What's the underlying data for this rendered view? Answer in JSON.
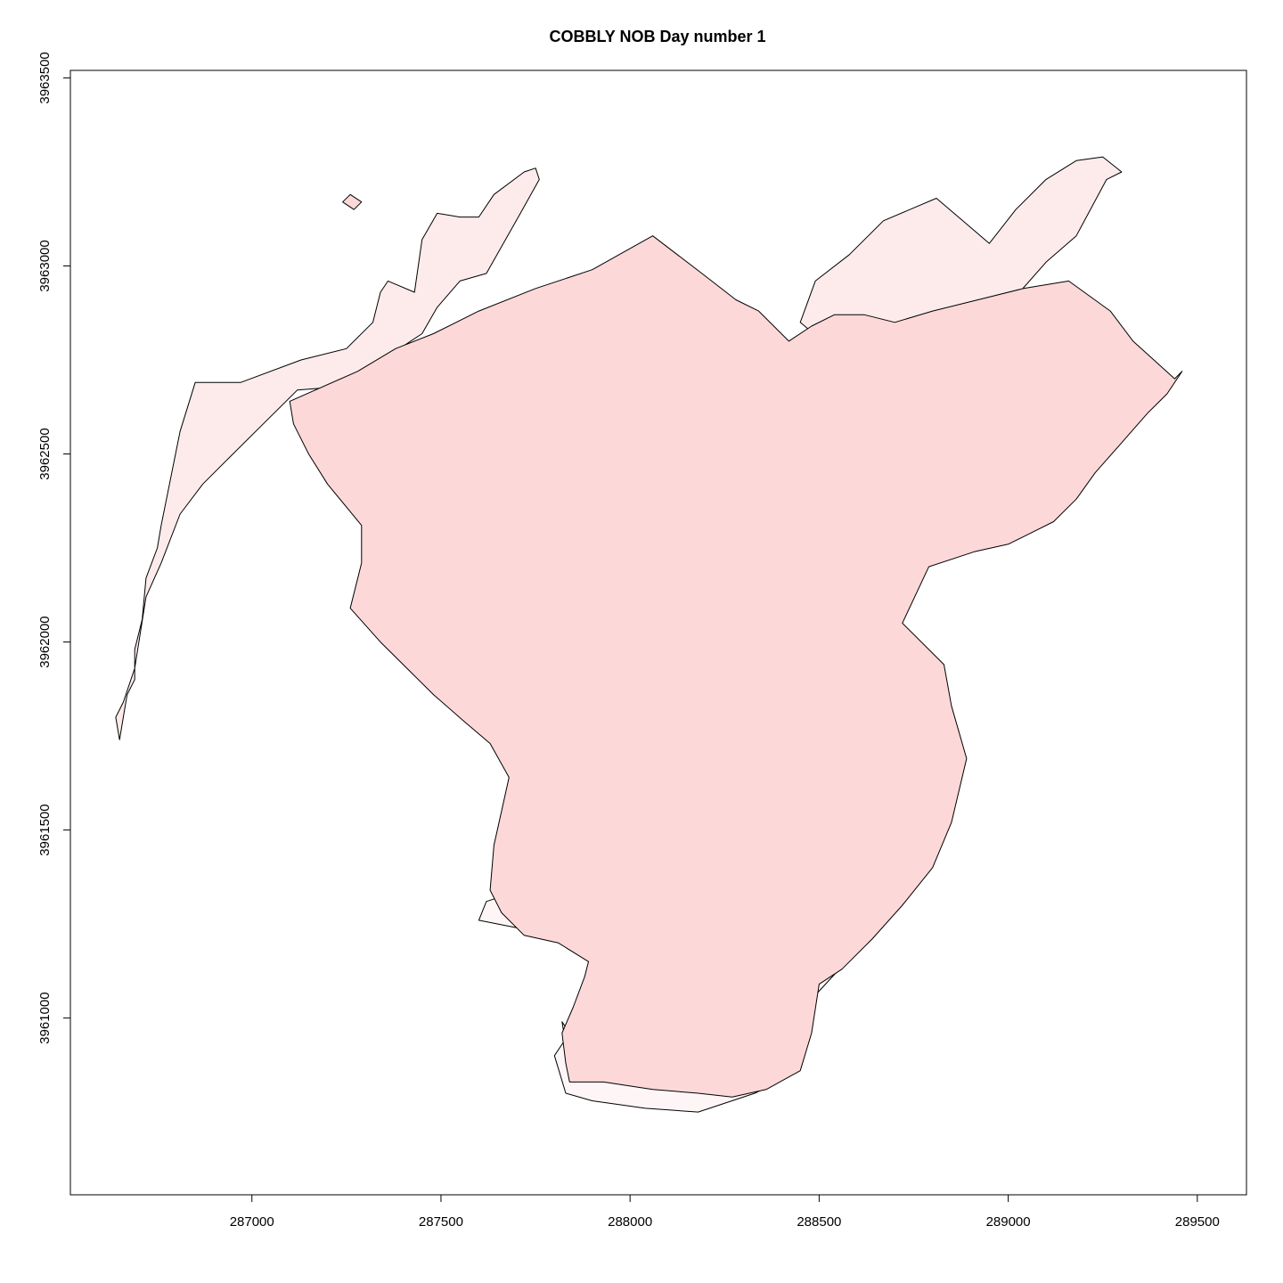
{
  "title": "COBBLY NOB   Day number 1",
  "axes": {
    "x": {
      "ticks": [
        287000,
        287500,
        288000,
        288500,
        289000,
        289500
      ],
      "tick_labels": [
        "287000",
        "287500",
        "288000",
        "288500",
        "289000",
        "289500"
      ],
      "range": [
        286520,
        289630
      ]
    },
    "y": {
      "ticks": [
        3961000,
        3961500,
        3962000,
        3962500,
        3963000,
        3963500
      ],
      "tick_labels": [
        "3961000",
        "3961500",
        "3962000",
        "3962500",
        "3963000",
        "3963500"
      ],
      "range": [
        3960530,
        3963520
      ]
    }
  },
  "map_data": {
    "layers": [
      {
        "name": "outer_fires",
        "fill": "#fdebeb",
        "polygons": [
          [
            [
              286650,
              3961740
            ],
            [
              286640,
              3961800
            ],
            [
              286660,
              3961840
            ],
            [
              286690,
              3961930
            ],
            [
              286720,
              3962120
            ],
            [
              286760,
              3962210
            ],
            [
              286810,
              3962340
            ],
            [
              286870,
              3962420
            ],
            [
              286950,
              3962500
            ],
            [
              287120,
              3962670
            ],
            [
              287250,
              3962680
            ],
            [
              287340,
              3962750
            ],
            [
              287390,
              3962780
            ],
            [
              287450,
              3962820
            ],
            [
              287490,
              3962890
            ],
            [
              287550,
              3962960
            ],
            [
              287620,
              3962980
            ],
            [
              287710,
              3963140
            ],
            [
              287760,
              3963230
            ],
            [
              287750,
              3963260
            ],
            [
              287720,
              3963250
            ],
            [
              287640,
              3963190
            ],
            [
              287600,
              3963130
            ],
            [
              287550,
              3963130
            ],
            [
              287490,
              3963140
            ],
            [
              287450,
              3963070
            ],
            [
              287430,
              3962930
            ],
            [
              287360,
              3962960
            ],
            [
              287340,
              3962930
            ],
            [
              287320,
              3962850
            ],
            [
              287250,
              3962780
            ],
            [
              287130,
              3962750
            ],
            [
              286970,
              3962690
            ],
            [
              286850,
              3962690
            ],
            [
              286810,
              3962560
            ],
            [
              286760,
              3962310
            ],
            [
              286750,
              3962250
            ],
            [
              286720,
              3962170
            ],
            [
              286710,
              3962060
            ],
            [
              286690,
              3961980
            ],
            [
              286690,
              3961900
            ],
            [
              286670,
              3961860
            ],
            [
              286660,
              3961800
            ]
          ],
          [
            [
              288860,
              3962610
            ],
            [
              288940,
              3962720
            ],
            [
              288980,
              3962820
            ],
            [
              289030,
              3962930
            ],
            [
              289100,
              3963010
            ],
            [
              289180,
              3963080
            ],
            [
              289260,
              3963230
            ],
            [
              289300,
              3963250
            ],
            [
              289250,
              3963290
            ],
            [
              289180,
              3963280
            ],
            [
              289100,
              3963230
            ],
            [
              289020,
              3963150
            ],
            [
              288950,
              3963060
            ],
            [
              288810,
              3963180
            ],
            [
              288670,
              3963120
            ],
            [
              288580,
              3963030
            ],
            [
              288490,
              3962960
            ],
            [
              288450,
              3962850
            ],
            [
              288520,
              3962790
            ],
            [
              288600,
              3962770
            ],
            [
              288690,
              3962740
            ],
            [
              288780,
              3962680
            ]
          ]
        ]
      },
      {
        "name": "mid_fires",
        "fill": "#fef6f6",
        "polygons": [
          [
            [
              287830,
              3960800
            ],
            [
              287900,
              3960780
            ],
            [
              288040,
              3960760
            ],
            [
              288180,
              3960750
            ],
            [
              288330,
              3960800
            ],
            [
              288430,
              3960850
            ],
            [
              288460,
              3960940
            ],
            [
              288480,
              3961050
            ],
            [
              288590,
              3961170
            ],
            [
              288520,
              3961160
            ],
            [
              288450,
              3961140
            ],
            [
              288420,
              3961080
            ],
            [
              288330,
              3961020
            ],
            [
              288250,
              3961060
            ],
            [
              288160,
              3960980
            ],
            [
              288060,
              3960910
            ],
            [
              287960,
              3960860
            ],
            [
              287870,
              3960890
            ],
            [
              287830,
              3960930
            ],
            [
              287820,
              3960990
            ],
            [
              287840,
              3960960
            ],
            [
              287800,
              3960900
            ]
          ],
          [
            [
              287600,
              3961260
            ],
            [
              287700,
              3961240
            ],
            [
              287800,
              3961220
            ],
            [
              287880,
              3961200
            ],
            [
              287880,
              3961230
            ],
            [
              287850,
              3961210
            ],
            [
              287800,
              3961250
            ],
            [
              287740,
              3961280
            ],
            [
              287680,
              3961330
            ],
            [
              287620,
              3961310
            ]
          ]
        ]
      },
      {
        "name": "core_fire",
        "fill": "#fdd8d8",
        "polygons": [
          [
            [
              287100,
              3962640
            ],
            [
              287280,
              3962720
            ],
            [
              287380,
              3962780
            ],
            [
              287480,
              3962820
            ],
            [
              287600,
              3962880
            ],
            [
              287750,
              3962940
            ],
            [
              287900,
              3962990
            ],
            [
              288060,
              3963080
            ],
            [
              288190,
              3962980
            ],
            [
              288280,
              3962910
            ],
            [
              288340,
              3962880
            ],
            [
              288420,
              3962800
            ],
            [
              288480,
              3962840
            ],
            [
              288540,
              3962870
            ],
            [
              288620,
              3962870
            ],
            [
              288700,
              3962850
            ],
            [
              288800,
              3962880
            ],
            [
              288920,
              3962910
            ],
            [
              289040,
              3962940
            ],
            [
              289160,
              3962960
            ],
            [
              289270,
              3962880
            ],
            [
              289330,
              3962800
            ],
            [
              289440,
              3962700
            ],
            [
              289460,
              3962720
            ],
            [
              289420,
              3962660
            ],
            [
              289370,
              3962610
            ],
            [
              289300,
              3962530
            ],
            [
              289230,
              3962450
            ],
            [
              289180,
              3962380
            ],
            [
              289120,
              3962320
            ],
            [
              289060,
              3962290
            ],
            [
              289000,
              3962260
            ],
            [
              288910,
              3962240
            ],
            [
              288790,
              3962200
            ],
            [
              288720,
              3962050
            ],
            [
              288830,
              3961940
            ],
            [
              288850,
              3961830
            ],
            [
              288890,
              3961690
            ],
            [
              288850,
              3961520
            ],
            [
              288800,
              3961400
            ],
            [
              288720,
              3961300
            ],
            [
              288640,
              3961210
            ],
            [
              288560,
              3961130
            ],
            [
              288500,
              3961090
            ],
            [
              288480,
              3960960
            ],
            [
              288450,
              3960860
            ],
            [
              288360,
              3960810
            ],
            [
              288270,
              3960790
            ],
            [
              288180,
              3960800
            ],
            [
              288060,
              3960810
            ],
            [
              287930,
              3960830
            ],
            [
              287840,
              3960830
            ],
            [
              287830,
              3960880
            ],
            [
              287820,
              3960960
            ],
            [
              287850,
              3961030
            ],
            [
              287880,
              3961110
            ],
            [
              287890,
              3961150
            ],
            [
              287810,
              3961200
            ],
            [
              287720,
              3961220
            ],
            [
              287660,
              3961280
            ],
            [
              287630,
              3961340
            ],
            [
              287640,
              3961460
            ],
            [
              287660,
              3961550
            ],
            [
              287680,
              3961640
            ],
            [
              287630,
              3961730
            ],
            [
              287560,
              3961790
            ],
            [
              287480,
              3961860
            ],
            [
              287400,
              3961940
            ],
            [
              287340,
              3962000
            ],
            [
              287260,
              3962090
            ],
            [
              287290,
              3962210
            ],
            [
              287290,
              3962310
            ],
            [
              287200,
              3962420
            ],
            [
              287150,
              3962500
            ],
            [
              287110,
              3962580
            ]
          ]
        ]
      }
    ],
    "outlines": [
      [
        [
          287240,
          3963170
        ],
        [
          287270,
          3963150
        ],
        [
          287290,
          3963170
        ],
        [
          287260,
          3963190
        ]
      ]
    ]
  }
}
